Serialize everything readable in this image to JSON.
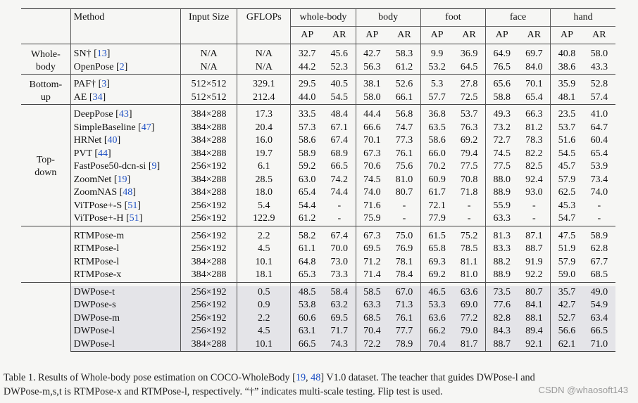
{
  "header": {
    "method": "Method",
    "input_size": "Input Size",
    "gflops": "GFLOPs",
    "groups": [
      "whole-body",
      "body",
      "foot",
      "face",
      "hand"
    ],
    "ap": "AP",
    "ar": "AR"
  },
  "sections": [
    {
      "label_lines": [
        "Whole-",
        "body"
      ],
      "shaded": false,
      "rows": [
        {
          "method": "SN†",
          "ref": "13",
          "input": "N/A",
          "gflops": "N/A",
          "vals": [
            "32.7",
            "45.6",
            "42.7",
            "58.3",
            "9.9",
            "36.9",
            "64.9",
            "69.7",
            "40.8",
            "58.0"
          ]
        },
        {
          "method": "OpenPose",
          "ref": "2",
          "input": "N/A",
          "gflops": "N/A",
          "vals": [
            "44.2",
            "52.3",
            "56.3",
            "61.2",
            "53.2",
            "64.5",
            "76.5",
            "84.0",
            "38.6",
            "43.3"
          ]
        }
      ]
    },
    {
      "label_lines": [
        "Bottom-",
        "up"
      ],
      "shaded": false,
      "rows": [
        {
          "method": "PAF†",
          "ref": "3",
          "input": "512×512",
          "gflops": "329.1",
          "vals": [
            "29.5",
            "40.5",
            "38.1",
            "52.6",
            "5.3",
            "27.8",
            "65.6",
            "70.1",
            "35.9",
            "52.8"
          ]
        },
        {
          "method": "AE",
          "ref": "34",
          "input": "512×512",
          "gflops": "212.4",
          "vals": [
            "44.0",
            "54.5",
            "58.0",
            "66.1",
            "57.7",
            "72.5",
            "58.8",
            "65.4",
            "48.1",
            "57.4"
          ]
        }
      ]
    },
    {
      "label_lines": [
        "Top-",
        "down"
      ],
      "shaded": false,
      "rows": [
        {
          "method": "DeepPose",
          "ref": "43",
          "input": "384×288",
          "gflops": "17.3",
          "vals": [
            "33.5",
            "48.4",
            "44.4",
            "56.8",
            "36.8",
            "53.7",
            "49.3",
            "66.3",
            "23.5",
            "41.0"
          ]
        },
        {
          "method": "SimpleBaseline",
          "ref": "47",
          "input": "384×288",
          "gflops": "20.4",
          "vals": [
            "57.3",
            "67.1",
            "66.6",
            "74.7",
            "63.5",
            "76.3",
            "73.2",
            "81.2",
            "53.7",
            "64.7"
          ]
        },
        {
          "method": "HRNet",
          "ref": "40",
          "input": "384×288",
          "gflops": "16.0",
          "vals": [
            "58.6",
            "67.4",
            "70.1",
            "77.3",
            "58.6",
            "69.2",
            "72.7",
            "78.3",
            "51.6",
            "60.4"
          ]
        },
        {
          "method": "PVT",
          "ref": "44",
          "input": "384×288",
          "gflops": "19.7",
          "vals": [
            "58.9",
            "68.9",
            "67.3",
            "76.1",
            "66.0",
            "79.4",
            "74.5",
            "82.2",
            "54.5",
            "65.4"
          ]
        },
        {
          "method": "FastPose50-dcn-si",
          "ref": "9",
          "input": "256×192",
          "gflops": "6.1",
          "vals": [
            "59.2",
            "66.5",
            "70.6",
            "75.6",
            "70.2",
            "77.5",
            "77.5",
            "82.5",
            "45.7",
            "53.9"
          ]
        },
        {
          "method": "ZoomNet",
          "ref": "19",
          "input": "384×288",
          "gflops": "28.5",
          "vals": [
            "63.0",
            "74.2",
            "74.5",
            "81.0",
            "60.9",
            "70.8",
            "88.0",
            "92.4",
            "57.9",
            "73.4"
          ]
        },
        {
          "method": "ZoomNAS",
          "ref": "48",
          "input": "384×288",
          "gflops": "18.0",
          "vals": [
            "65.4",
            "74.4",
            "74.0",
            "80.7",
            "61.7",
            "71.8",
            "88.9",
            "93.0",
            "62.5",
            "74.0"
          ]
        },
        {
          "method": "ViTPose+-S",
          "ref": "51",
          "input": "256×192",
          "gflops": "5.4",
          "vals": [
            "54.4",
            "-",
            "71.6",
            "-",
            "72.1",
            "-",
            "55.9",
            "-",
            "45.3",
            "-"
          ]
        },
        {
          "method": "ViTPose+-H",
          "ref": "51",
          "input": "256×192",
          "gflops": "122.9",
          "vals": [
            "61.2",
            "-",
            "75.9",
            "-",
            "77.9",
            "-",
            "63.3",
            "-",
            "54.7",
            "-"
          ]
        }
      ]
    },
    {
      "label_lines": [],
      "shaded": false,
      "rows": [
        {
          "method": "RTMPose-m",
          "ref": "",
          "input": "256×192",
          "gflops": "2.2",
          "vals": [
            "58.2",
            "67.4",
            "67.3",
            "75.0",
            "61.5",
            "75.2",
            "81.3",
            "87.1",
            "47.5",
            "58.9"
          ]
        },
        {
          "method": "RTMPose-l",
          "ref": "",
          "input": "256×192",
          "gflops": "4.5",
          "vals": [
            "61.1",
            "70.0",
            "69.5",
            "76.9",
            "65.8",
            "78.5",
            "83.3",
            "88.7",
            "51.9",
            "62.8"
          ]
        },
        {
          "method": "RTMPose-l",
          "ref": "",
          "input": "384×288",
          "gflops": "10.1",
          "vals": [
            "64.8",
            "73.0",
            "71.2",
            "78.1",
            "69.3",
            "81.1",
            "88.2",
            "91.9",
            "57.9",
            "67.7"
          ]
        },
        {
          "method": "RTMPose-x",
          "ref": "",
          "input": "384×288",
          "gflops": "18.1",
          "vals": [
            "65.3",
            "73.3",
            "71.4",
            "78.4",
            "69.2",
            "81.0",
            "88.9",
            "92.2",
            "59.0",
            "68.5"
          ]
        }
      ]
    },
    {
      "label_lines": [],
      "shaded": true,
      "rows": [
        {
          "method": "DWPose-t",
          "ref": "",
          "input": "256×192",
          "gflops": "0.5",
          "vals": [
            "48.5",
            "58.4",
            "58.5",
            "67.0",
            "46.5",
            "63.6",
            "73.5",
            "80.7",
            "35.7",
            "49.0"
          ]
        },
        {
          "method": "DWPose-s",
          "ref": "",
          "input": "256×192",
          "gflops": "0.9",
          "vals": [
            "53.8",
            "63.2",
            "63.3",
            "71.3",
            "53.3",
            "69.0",
            "77.6",
            "84.1",
            "42.7",
            "54.9"
          ]
        },
        {
          "method": "DWPose-m",
          "ref": "",
          "input": "256×192",
          "gflops": "2.2",
          "vals": [
            "60.6",
            "69.5",
            "68.5",
            "76.1",
            "63.6",
            "77.2",
            "82.8",
            "88.1",
            "52.7",
            "63.4"
          ]
        },
        {
          "method": "DWPose-l",
          "ref": "",
          "input": "256×192",
          "gflops": "4.5",
          "vals": [
            "63.1",
            "71.7",
            "70.4",
            "77.7",
            "66.2",
            "79.0",
            "84.3",
            "89.4",
            "56.6",
            "66.5"
          ]
        },
        {
          "method": "DWPose-l",
          "ref": "",
          "input": "384×288",
          "gflops": "10.1",
          "vals": [
            "66.5",
            "74.3",
            "72.2",
            "78.9",
            "70.4",
            "81.7",
            "88.7",
            "92.1",
            "62.1",
            "71.0"
          ]
        }
      ]
    }
  ],
  "caption": {
    "line1_a": "Table 1. Results of Whole-body pose estimation on COCO-WholeBody [",
    "ref1": "19",
    "sep": ", ",
    "ref2": "48",
    "line1_b": "] V1.0 dataset.  The teacher that guides DWPose-l and",
    "line2": "DWPose-m,s,t is RTMPose-x and RTMPose-l, respectively. “†” indicates multi-scale testing. Flip test is used."
  },
  "watermark": "CSDN @whaosoft143"
}
